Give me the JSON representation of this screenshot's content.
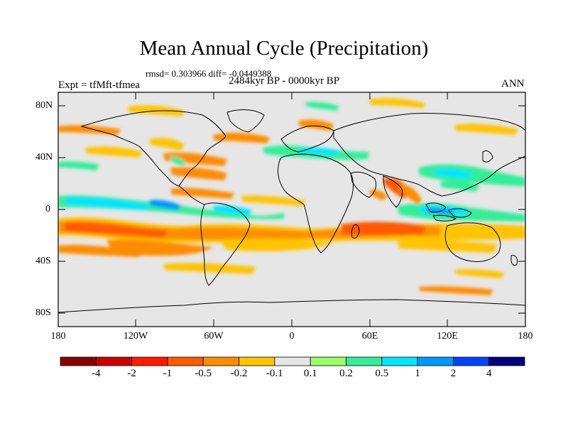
{
  "title": "Mean Annual Cycle (Precipitation)",
  "stats": "rmsd= 0.303966  diff= -0.0449388",
  "period": "2484kyr BP - 0000kyr BP",
  "experiment": "Expt = tfMft-tfmea",
  "season": "ANN",
  "lat_labels": [
    "80N",
    "40N",
    "0",
    "40S",
    "80S"
  ],
  "lon_labels": [
    "180",
    "120W",
    "60W",
    "0",
    "60E",
    "120E",
    "180"
  ],
  "colorbar": {
    "labels": [
      "-4",
      "-2",
      "-1",
      "-0.5",
      "-0.2",
      "-0.1",
      "0.1",
      "0.2",
      "0.5",
      "1",
      "2",
      "4"
    ],
    "colors": [
      "#8b0000",
      "#cc0000",
      "#ff1a00",
      "#ff5a00",
      "#ff8c00",
      "#ffc400",
      "#e6e6e6",
      "#99ff66",
      "#33ee99",
      "#00e6ff",
      "#0099ff",
      "#0044ff",
      "#00007f"
    ]
  },
  "colors": {
    "background": "#e6e6e6",
    "coast": "#000000"
  }
}
